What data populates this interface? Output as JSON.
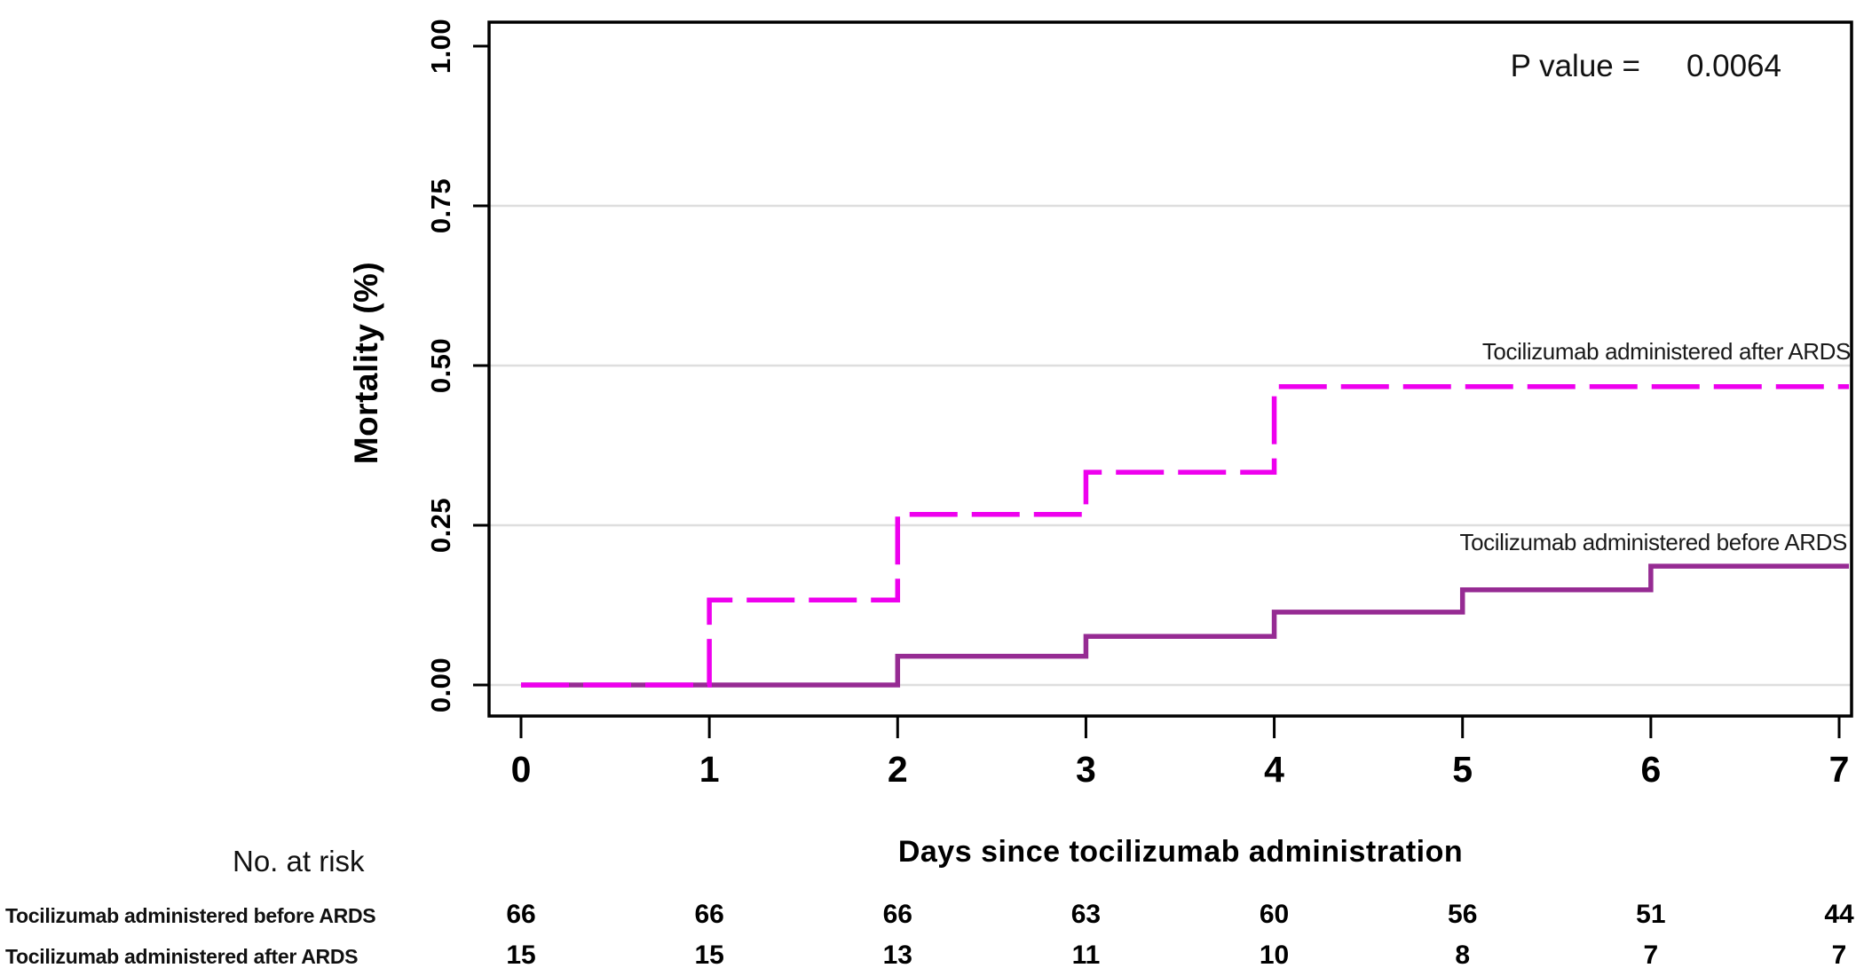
{
  "chart_data": {
    "type": "line",
    "subtype": "kaplan-meier-step-curves",
    "title": "",
    "xlabel": "Days since tocilizumab administration",
    "ylabel": "Mortality (%)",
    "xlim": [
      0,
      7
    ],
    "ylim": [
      0,
      1
    ],
    "x_ticks": [
      0,
      1,
      2,
      3,
      4,
      5,
      6,
      7
    ],
    "y_ticks": [
      {
        "label": "0.00",
        "value": 0
      },
      {
        "label": "0.25",
        "value": 0.25
      },
      {
        "label": "0.50",
        "value": 0.5
      },
      {
        "label": "0.75",
        "value": 0.75
      },
      {
        "label": "1.00",
        "value": 1
      }
    ],
    "grid": "horizontal-gridlines-at-0.00-0.25-0.50-0.75",
    "legend_position": "labels-at-line-ends-right",
    "annotation": {
      "p_label": "P value =",
      "p_value": "0.0064"
    },
    "series": [
      {
        "name": "Tocilizumab administered before ARDS",
        "color": "#962B93",
        "style": "solid",
        "step_points": [
          [
            0,
            0
          ],
          [
            2,
            0.045
          ],
          [
            3,
            0.076
          ],
          [
            4,
            0.114
          ],
          [
            5,
            0.149
          ],
          [
            6,
            0.186
          ],
          [
            7,
            0.186
          ]
        ]
      },
      {
        "name": "Tocilizumab administered after ARDS",
        "color": "#EE00EE",
        "style": "dashed",
        "step_points": [
          [
            0,
            0
          ],
          [
            1,
            0.133
          ],
          [
            2,
            0.267
          ],
          [
            3,
            0.333
          ],
          [
            4,
            0.467
          ],
          [
            7,
            0.467
          ]
        ]
      }
    ],
    "colors": {
      "axis": "#000000",
      "gridline": "#DEDEDE",
      "text": "#111111"
    }
  },
  "risk_table": {
    "title": "No. at risk",
    "days": [
      0,
      1,
      2,
      3,
      4,
      5,
      6,
      7
    ],
    "rows": [
      {
        "label": "Tocilizumab administered before ARDS",
        "values": [
          66,
          66,
          66,
          63,
          60,
          56,
          51,
          44
        ]
      },
      {
        "label": "Tocilizumab administered after ARDS",
        "values": [
          15,
          15,
          13,
          11,
          10,
          8,
          7,
          7
        ]
      }
    ]
  }
}
